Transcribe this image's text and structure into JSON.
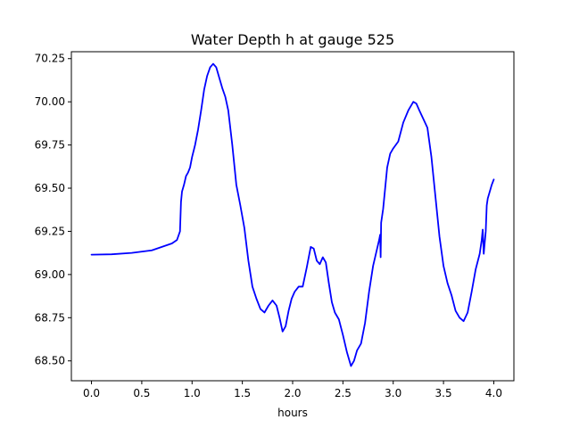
{
  "chart_data": {
    "type": "line",
    "title": "Water Depth h at gauge 525",
    "xlabel": "hours",
    "ylabel": "",
    "xlim": [
      -0.2,
      4.2
    ],
    "ylim": [
      68.385,
      70.29
    ],
    "x_ticks": [
      0.0,
      0.5,
      1.0,
      1.5,
      2.0,
      2.5,
      3.0,
      3.5,
      4.0
    ],
    "x_tick_labels": [
      "0.0",
      "0.5",
      "1.0",
      "1.5",
      "2.0",
      "2.5",
      "3.0",
      "3.5",
      "4.0"
    ],
    "y_ticks": [
      68.5,
      68.75,
      69.0,
      69.25,
      69.5,
      69.75,
      70.0,
      70.25
    ],
    "y_tick_labels": [
      "68.50",
      "68.75",
      "69.00",
      "69.25",
      "69.50",
      "69.75",
      "70.00",
      "70.25"
    ],
    "grid": false,
    "colors": {
      "line": "#0000ff"
    },
    "series": [
      {
        "x": [
          0.0,
          0.2,
          0.4,
          0.6,
          0.7,
          0.8,
          0.85,
          0.88,
          0.89,
          0.9,
          0.92,
          0.94,
          0.96,
          0.98,
          1.0,
          1.03,
          1.06,
          1.09,
          1.12,
          1.15,
          1.18,
          1.21,
          1.24,
          1.27,
          1.3,
          1.33,
          1.36,
          1.4,
          1.44,
          1.48,
          1.52,
          1.56,
          1.6,
          1.64,
          1.68,
          1.72,
          1.76,
          1.8,
          1.84,
          1.87,
          1.9,
          1.93,
          1.96,
          1.99,
          2.02,
          2.06,
          2.1,
          2.14,
          2.18,
          2.21,
          2.24,
          2.27,
          2.3,
          2.33,
          2.36,
          2.39,
          2.42,
          2.46,
          2.5,
          2.54,
          2.58,
          2.61,
          2.64,
          2.68,
          2.72,
          2.76,
          2.8,
          2.84,
          2.86,
          2.87,
          2.875,
          2.88,
          2.9,
          2.92,
          2.94,
          2.97,
          3.0,
          3.05,
          3.1,
          3.15,
          3.2,
          3.23,
          3.26,
          3.3,
          3.34,
          3.38,
          3.42,
          3.46,
          3.5,
          3.54,
          3.58,
          3.62,
          3.66,
          3.7,
          3.74,
          3.78,
          3.82,
          3.86,
          3.88,
          3.89,
          3.9,
          3.92,
          3.93,
          3.94,
          3.96,
          3.98,
          4.0
        ],
        "y": [
          69.115,
          69.117,
          69.125,
          69.14,
          69.16,
          69.18,
          69.2,
          69.25,
          69.42,
          69.48,
          69.52,
          69.57,
          69.59,
          69.62,
          69.68,
          69.75,
          69.84,
          69.95,
          70.07,
          70.15,
          70.2,
          70.22,
          70.2,
          70.14,
          70.08,
          70.03,
          69.95,
          69.75,
          69.52,
          69.4,
          69.27,
          69.08,
          68.93,
          68.86,
          68.8,
          68.78,
          68.82,
          68.85,
          68.82,
          68.75,
          68.67,
          68.7,
          68.79,
          68.86,
          68.9,
          68.93,
          68.93,
          69.04,
          69.16,
          69.15,
          69.08,
          69.06,
          69.1,
          69.07,
          68.95,
          68.84,
          68.78,
          68.74,
          68.65,
          68.55,
          68.47,
          68.5,
          68.56,
          68.6,
          68.72,
          68.9,
          69.05,
          69.15,
          69.2,
          69.23,
          69.1,
          69.3,
          69.38,
          69.5,
          69.62,
          69.7,
          69.73,
          69.77,
          69.88,
          69.95,
          70.0,
          69.99,
          69.95,
          69.9,
          69.85,
          69.68,
          69.45,
          69.22,
          69.05,
          68.95,
          68.88,
          68.79,
          68.75,
          68.73,
          68.78,
          68.9,
          69.03,
          69.12,
          69.2,
          69.26,
          69.12,
          69.25,
          69.4,
          69.44,
          69.48,
          69.52,
          69.55
        ]
      }
    ]
  }
}
